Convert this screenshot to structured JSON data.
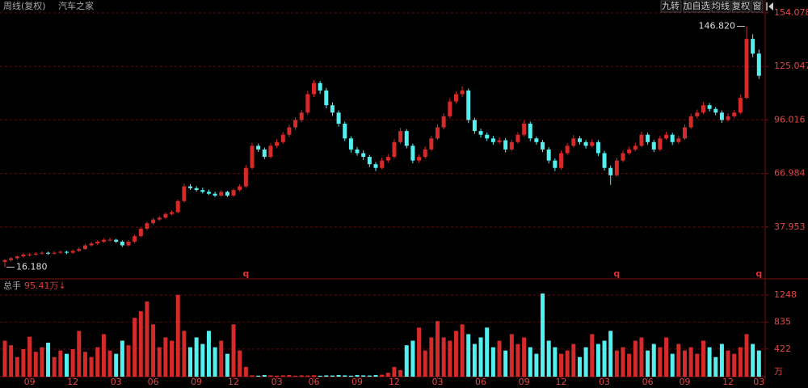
{
  "header": {
    "title": "周线(复权)",
    "stock": "汽车之家",
    "buttons": [
      "九转",
      "加自选",
      "均线",
      "复权",
      "窗"
    ],
    "volume_label": "总手",
    "volume_value": "95.41万↓"
  },
  "chart_data": [
    {
      "type": "candlestick",
      "up_color": "#d42a2a",
      "down_color": "#54f0f0",
      "grid": true,
      "ylim": [
        12,
        154.078
      ],
      "yticks": [
        154.078,
        125.047,
        96.016,
        66.984,
        37.953
      ],
      "max_label": {
        "value": 146.82,
        "label": "146.820"
      },
      "min_label": {
        "value": 16.18,
        "label": "16.180"
      },
      "flags": [
        null,
        null,
        null,
        null,
        null,
        null,
        null,
        null,
        null,
        null,
        null,
        null,
        null,
        null,
        null,
        null,
        null,
        null,
        null,
        null,
        null,
        null,
        null,
        null,
        null,
        null,
        null,
        null,
        null,
        null,
        null,
        null,
        null,
        null,
        null,
        null,
        null,
        null,
        null,
        "q",
        null,
        null,
        null,
        null,
        null,
        null,
        null,
        null,
        null,
        null,
        null,
        null,
        null,
        null,
        null,
        null,
        null,
        null,
        null,
        null,
        null,
        null,
        null,
        null,
        null,
        null,
        null,
        null,
        null,
        null,
        null,
        null,
        null,
        null,
        null,
        null,
        null,
        null,
        null,
        null,
        null,
        null,
        null,
        null,
        null,
        null,
        null,
        null,
        null,
        null,
        null,
        null,
        null,
        null,
        null,
        null,
        null,
        null,
        null,
        "q",
        null,
        null,
        null,
        null,
        null,
        null,
        null,
        null,
        null,
        null,
        null,
        null,
        null,
        null,
        null,
        null,
        null,
        null,
        null,
        null,
        null,
        null,
        "q"
      ],
      "ohlc": [
        [
          19,
          20.5,
          16.18,
          20
        ],
        [
          20,
          21.8,
          19.2,
          21
        ],
        [
          21,
          22.6,
          20.3,
          22
        ],
        [
          22,
          23.8,
          21.4,
          23
        ],
        [
          23,
          23.9,
          22.1,
          23
        ],
        [
          23,
          24.3,
          22.4,
          23.5
        ],
        [
          23.5,
          24.8,
          22.9,
          24
        ],
        [
          24,
          24.6,
          22.8,
          23.5
        ],
        [
          23.5,
          24.9,
          22.9,
          24
        ],
        [
          24,
          25.3,
          23.4,
          24.5
        ],
        [
          24.5,
          25.1,
          23.2,
          24
        ],
        [
          24,
          25.8,
          23.5,
          25
        ],
        [
          25,
          26.9,
          24.4,
          26
        ],
        [
          26,
          28.8,
          25.4,
          28
        ],
        [
          28,
          29.9,
          27.3,
          29
        ],
        [
          29,
          30.8,
          28.2,
          30
        ],
        [
          30,
          31.9,
          29.3,
          31
        ],
        [
          31,
          32.2,
          30.1,
          31
        ],
        [
          31,
          31.6,
          29.2,
          30
        ],
        [
          30,
          30.7,
          27.1,
          28
        ],
        [
          28,
          30.8,
          27.4,
          30
        ],
        [
          30,
          33.9,
          29.3,
          33
        ],
        [
          33,
          37.8,
          32.4,
          37
        ],
        [
          37,
          40.9,
          36.2,
          40
        ],
        [
          40,
          42.8,
          39.1,
          42
        ],
        [
          42,
          43.9,
          41.2,
          43
        ],
        [
          43,
          45.8,
          42.3,
          45
        ],
        [
          45,
          46.9,
          44.2,
          46
        ],
        [
          46,
          52.8,
          45.4,
          52
        ],
        [
          52,
          61.5,
          51.2,
          60
        ],
        [
          60,
          61.2,
          58.1,
          59
        ],
        [
          59,
          60.1,
          57.2,
          58
        ],
        [
          58,
          59.3,
          56.1,
          57
        ],
        [
          57,
          58.2,
          55.3,
          56
        ],
        [
          56,
          57.1,
          54.2,
          55
        ],
        [
          55,
          57.9,
          54.3,
          57
        ],
        [
          57,
          57.6,
          54.1,
          55
        ],
        [
          55,
          58.8,
          54.2,
          58
        ],
        [
          58,
          61.2,
          57.1,
          60
        ],
        [
          60,
          71.5,
          59.2,
          70
        ],
        [
          70,
          83.6,
          69.1,
          82
        ],
        [
          82,
          83.2,
          78.6,
          80
        ],
        [
          80,
          81.1,
          74.8,
          76
        ],
        [
          76,
          83.4,
          75.2,
          82
        ],
        [
          82,
          85.6,
          80.9,
          84
        ],
        [
          84,
          89.5,
          83.1,
          88
        ],
        [
          88,
          93.4,
          86.8,
          92
        ],
        [
          92,
          97.5,
          90.6,
          96
        ],
        [
          96,
          101.6,
          94.8,
          100
        ],
        [
          100,
          111.8,
          98.9,
          110
        ],
        [
          110,
          117.6,
          108.4,
          116
        ],
        [
          116,
          117.2,
          110.1,
          112
        ],
        [
          112,
          113.4,
          102.3,
          104
        ],
        [
          104,
          105.6,
          98.2,
          100
        ],
        [
          100,
          101.2,
          92.4,
          94
        ],
        [
          94,
          95.1,
          84.6,
          86
        ],
        [
          86,
          87.2,
          78.3,
          80
        ],
        [
          80,
          81.4,
          76.6,
          78
        ],
        [
          78,
          79.5,
          74.3,
          76
        ],
        [
          76,
          77.1,
          70.4,
          72
        ],
        [
          72,
          73.2,
          68.3,
          70
        ],
        [
          70,
          75.6,
          69.2,
          74
        ],
        [
          74,
          77.5,
          72.8,
          76
        ],
        [
          76,
          85.7,
          75.1,
          84
        ],
        [
          84,
          91.8,
          82.9,
          90
        ],
        [
          90,
          91.1,
          80.6,
          82
        ],
        [
          82,
          83.2,
          72.5,
          74
        ],
        [
          74,
          77.4,
          72.8,
          76
        ],
        [
          76,
          81.6,
          75.1,
          80
        ],
        [
          80,
          87.5,
          79.2,
          86
        ],
        [
          86,
          93.6,
          85.1,
          92
        ],
        [
          92,
          99.7,
          90.8,
          98
        ],
        [
          98,
          107.8,
          96.9,
          106
        ],
        [
          106,
          111.6,
          104.8,
          110
        ],
        [
          110,
          114.2,
          108.5,
          112
        ],
        [
          112,
          113.1,
          94.3,
          96
        ],
        [
          96,
          97.2,
          88.5,
          90
        ],
        [
          90,
          91.3,
          86.4,
          88
        ],
        [
          88,
          89.2,
          84.6,
          86
        ],
        [
          86,
          87.4,
          82.5,
          84
        ],
        [
          84,
          86.6,
          83.1,
          85
        ],
        [
          85,
          86.2,
          78.4,
          80
        ],
        [
          80,
          85.3,
          79.1,
          84
        ],
        [
          84,
          89.4,
          83.2,
          88
        ],
        [
          88,
          95.8,
          87.1,
          94
        ],
        [
          94,
          95.2,
          84.5,
          86
        ],
        [
          86,
          87.1,
          82.6,
          84
        ],
        [
          84,
          85.2,
          78.5,
          80
        ],
        [
          80,
          81.3,
          72.4,
          74
        ],
        [
          74,
          75.2,
          68.3,
          70
        ],
        [
          70,
          79.6,
          69.1,
          78
        ],
        [
          78,
          83.5,
          77.2,
          82
        ],
        [
          82,
          87.8,
          81.1,
          86
        ],
        [
          86,
          87.3,
          82.6,
          84
        ],
        [
          84,
          85.1,
          80.5,
          82
        ],
        [
          82,
          85.6,
          81.2,
          84
        ],
        [
          84,
          85.1,
          76.4,
          78
        ],
        [
          78,
          79.2,
          68.6,
          70
        ],
        [
          70,
          71.3,
          60.8,
          66
        ],
        [
          66,
          75.6,
          65.2,
          74
        ],
        [
          74,
          79.4,
          73.1,
          78
        ],
        [
          78,
          81.5,
          77.2,
          80
        ],
        [
          80,
          83.6,
          79.1,
          82
        ],
        [
          82,
          89.8,
          81.3,
          88
        ],
        [
          88,
          89.1,
          82.5,
          84
        ],
        [
          84,
          85.2,
          78.6,
          80
        ],
        [
          80,
          87.5,
          79.1,
          86
        ],
        [
          86,
          89.6,
          85.2,
          88
        ],
        [
          88,
          89.1,
          82.4,
          84
        ],
        [
          84,
          87.5,
          83.1,
          86
        ],
        [
          86,
          93.6,
          85.2,
          92
        ],
        [
          92,
          99.5,
          91.1,
          98
        ],
        [
          98,
          101.7,
          96.8,
          100
        ],
        [
          100,
          105.8,
          99.1,
          104
        ],
        [
          104,
          105.2,
          100.6,
          102
        ],
        [
          102,
          103.1,
          98.5,
          100
        ],
        [
          100,
          101.2,
          94.4,
          96
        ],
        [
          96,
          99.6,
          95.1,
          98
        ],
        [
          98,
          101.4,
          97.2,
          100
        ],
        [
          100,
          109.8,
          99.1,
          108
        ],
        [
          108,
          146.82,
          107.2,
          140
        ],
        [
          140,
          142.5,
          130.1,
          132
        ],
        [
          132,
          134.2,
          118.3,
          120
        ]
      ]
    },
    {
      "type": "bar",
      "unit": "万",
      "ylim": [
        0,
        1371
      ],
      "yticks": [
        1248,
        835,
        422
      ],
      "categories": [
        null,
        null,
        null,
        null,
        "09",
        null,
        null,
        null,
        null,
        null,
        null,
        "12",
        null,
        null,
        null,
        null,
        null,
        null,
        "03",
        null,
        null,
        null,
        null,
        null,
        "06",
        null,
        null,
        null,
        null,
        null,
        null,
        "09",
        null,
        null,
        null,
        null,
        null,
        "12",
        null,
        null,
        null,
        null,
        null,
        null,
        "03",
        null,
        null,
        null,
        null,
        null,
        "06",
        null,
        null,
        null,
        null,
        null,
        null,
        "09",
        null,
        null,
        null,
        null,
        null,
        "12",
        null,
        null,
        null,
        null,
        null,
        null,
        "03",
        null,
        null,
        null,
        null,
        null,
        null,
        "06",
        null,
        null,
        null,
        null,
        null,
        null,
        "09",
        null,
        null,
        null,
        null,
        null,
        "12",
        null,
        null,
        null,
        null,
        null,
        null,
        "03",
        null,
        null,
        null,
        null,
        null,
        null,
        "06",
        null,
        null,
        null,
        null,
        null,
        "09",
        null,
        null,
        null,
        null,
        null,
        null,
        "12",
        null,
        null,
        null,
        null,
        "03"
      ],
      "values": [
        550,
        480,
        300,
        420,
        610,
        380,
        450,
        520,
        300,
        400,
        350,
        420,
        700,
        380,
        300,
        450,
        650,
        400,
        350,
        550,
        480,
        900,
        1000,
        1150,
        800,
        450,
        600,
        550,
        1250,
        700,
        450,
        600,
        500,
        700,
        450,
        550,
        350,
        800,
        400,
        150,
        20,
        15,
        25,
        20,
        15,
        20,
        25,
        15,
        20,
        18,
        22,
        15,
        20,
        18,
        25,
        20,
        15,
        25,
        20,
        18,
        25,
        30,
        60,
        150,
        100,
        480,
        550,
        750,
        400,
        600,
        850,
        600,
        550,
        700,
        800,
        650,
        500,
        600,
        750,
        450,
        550,
        400,
        650,
        500,
        600,
        450,
        350,
        1270,
        550,
        450,
        350,
        400,
        500,
        300,
        450,
        650,
        500,
        550,
        700,
        400,
        450,
        350,
        550,
        600,
        400,
        500,
        450,
        600,
        350,
        500,
        400,
        450,
        350,
        550,
        450,
        300,
        500,
        400,
        350,
        450,
        650,
        500,
        400
      ]
    }
  ]
}
